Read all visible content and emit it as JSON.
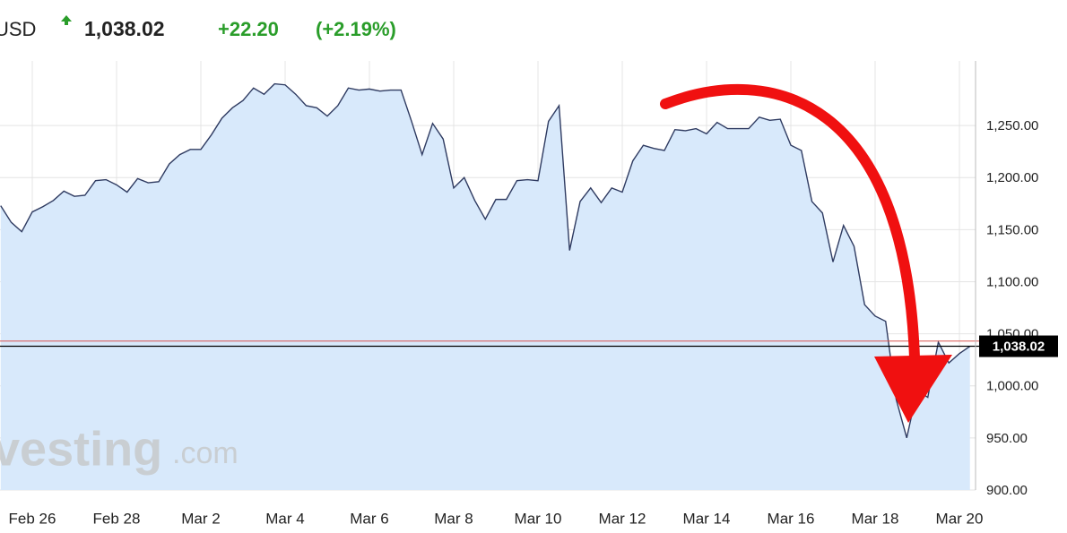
{
  "chart_data": {
    "type": "line",
    "header": {
      "symbol": "USD",
      "price": "1,038.02",
      "change": "+22.20",
      "change_percent": "(+2.19%)"
    },
    "watermark": [
      "vesting",
      ".com"
    ],
    "categories": [
      null,
      null,
      null,
      "Feb 26",
      null,
      null,
      null,
      null,
      null,
      null,
      null,
      "Feb 28",
      null,
      null,
      null,
      null,
      null,
      null,
      null,
      "Mar 2",
      null,
      null,
      null,
      null,
      null,
      null,
      null,
      "Mar 4",
      null,
      null,
      null,
      null,
      null,
      null,
      null,
      "Mar 6",
      null,
      null,
      null,
      null,
      null,
      null,
      null,
      "Mar 8",
      null,
      null,
      null,
      null,
      null,
      null,
      null,
      "Mar 10",
      null,
      null,
      null,
      null,
      null,
      null,
      null,
      "Mar 12",
      null,
      null,
      null,
      null,
      null,
      null,
      null,
      "Mar 14",
      null,
      null,
      null,
      null,
      null,
      null,
      null,
      "Mar 16",
      null,
      null,
      null,
      null,
      null,
      null,
      null,
      "Mar 18",
      null,
      null,
      null,
      null,
      null,
      null,
      null,
      "Mar 20",
      null
    ],
    "series": [
      {
        "color": "#2f3b61",
        "fill": "#d8e9fb",
        "values": [
          1173,
          1157,
          1148,
          1167,
          1172,
          1178,
          1187,
          1182,
          1183,
          1197,
          1198,
          1193,
          1186,
          1199,
          1195,
          1196,
          1213,
          1222,
          1227,
          1227,
          1241,
          1257,
          1267,
          1274,
          1286,
          1280,
          1290,
          1289,
          1280,
          1269,
          1267,
          1259,
          1269,
          1286,
          1284,
          1285,
          1283,
          1284,
          1284,
          1254,
          1222,
          1252,
          1237,
          1190,
          1200,
          1178,
          1160,
          1179,
          1179,
          1197,
          1198,
          1197,
          1254,
          1269,
          1130,
          1177,
          1190,
          1176,
          1190,
          1186,
          1216,
          1231,
          1228,
          1226,
          1246,
          1245,
          1247,
          1242,
          1253,
          1247,
          1247,
          1247,
          1258,
          1255,
          1256,
          1231,
          1226,
          1177,
          1166,
          1119,
          1154,
          1134,
          1078,
          1067,
          1062,
          987,
          950,
          996,
          989,
          1042,
          1022,
          1031,
          1038.02
        ]
      }
    ],
    "price_line": {
      "value": 1038.02,
      "label": "1,038.02",
      "color": "#000000"
    },
    "reference_line": {
      "value": 1043,
      "color": "#d9534f"
    },
    "ylim": [
      900,
      1312
    ],
    "yticks": [
      {
        "value": 900,
        "label": "900.00"
      },
      {
        "value": 950,
        "label": "950.00"
      },
      {
        "value": 1000,
        "label": "1,000.00"
      },
      {
        "value": 1050,
        "label": "1,050.00"
      },
      {
        "value": 1100,
        "label": "1,100.00"
      },
      {
        "value": 1150,
        "label": "1,150.00"
      },
      {
        "value": 1200,
        "label": "1,200.00"
      },
      {
        "value": 1250,
        "label": "1,250.00"
      }
    ],
    "grid": true
  }
}
